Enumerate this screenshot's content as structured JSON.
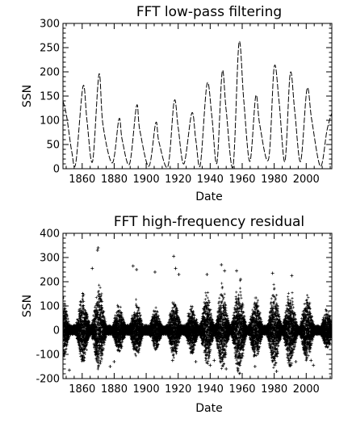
{
  "chart_data": [
    {
      "type": "line",
      "title": "FFT low-pass filtering",
      "xlabel": "Date",
      "ylabel": "SSN",
      "xlim": [
        1848,
        2016
      ],
      "ylim": [
        0,
        300
      ],
      "xticks": [
        "1860",
        "1880",
        "1900",
        "1920",
        "1940",
        "1960",
        "1980",
        "2000"
      ],
      "yticks": [
        "0",
        "50",
        "100",
        "150",
        "200",
        "250",
        "300"
      ],
      "line_style": "dashed",
      "grid": false,
      "series": [
        {
          "x": [
            1848.0,
            1850.2,
            1853.5,
            1856.0,
            1860.5,
            1863.0,
            1866.5,
            1870.5,
            1873.0,
            1878.9,
            1883.0,
            1885.0,
            1889.6,
            1894.0,
            1896.0,
            1901.7,
            1906.0,
            1908.0,
            1913.6,
            1917.5,
            1920.0,
            1923.6,
            1928.5,
            1931.0,
            1933.8,
            1938.0,
            1941.0,
            1944.2,
            1947.5,
            1950.0,
            1954.3,
            1958.0,
            1961.0,
            1964.8,
            1968.5,
            1971.0,
            1976.5,
            1980.0,
            1983.0,
            1986.7,
            1990.0,
            1992.8,
            1996.5,
            2000.5,
            2003.5,
            2008.9,
            2013.0,
            2016.0
          ],
          "y": [
            140,
            110,
            35,
            12,
            170,
            100,
            15,
            195,
            90,
            12,
            103,
            60,
            10,
            130,
            80,
            5,
            95,
            55,
            5,
            140,
            85,
            10,
            115,
            60,
            8,
            175,
            110,
            12,
            200,
            120,
            5,
            260,
            140,
            15,
            150,
            90,
            20,
            210,
            140,
            15,
            197,
            120,
            15,
            165,
            100,
            5,
            80,
            115
          ]
        }
      ]
    },
    {
      "type": "scatter",
      "title": "FFT high-frequency residual",
      "xlabel": "Date",
      "ylabel": "SSN",
      "xlim": [
        1848,
        2016
      ],
      "ylim": [
        -200,
        400
      ],
      "xticks": [
        "1860",
        "1880",
        "1900",
        "1920",
        "1940",
        "1960",
        "1980",
        "2000"
      ],
      "yticks": [
        "-200",
        "-100",
        "0",
        "100",
        "200",
        "300",
        "400"
      ],
      "marker": "plus",
      "grid": false,
      "cycle_maxima": [
        1848.0,
        1860.5,
        1870.5,
        1883.0,
        1894.0,
        1906.0,
        1917.5,
        1928.5,
        1938.0,
        1947.5,
        1958.0,
        1968.5,
        1980.0,
        1990.0,
        2000.5,
        2013.0
      ],
      "envelope_amplitude": [
        140,
        160,
        200,
        110,
        130,
        95,
        135,
        115,
        165,
        195,
        220,
        145,
        190,
        185,
        155,
        90
      ],
      "outliers": [
        {
          "x": 1870.0,
          "y": 340
        },
        {
          "x": 1869.6,
          "y": 330
        },
        {
          "x": 1866.3,
          "y": 255
        },
        {
          "x": 1891.8,
          "y": 265
        },
        {
          "x": 1894.0,
          "y": 250
        },
        {
          "x": 1905.5,
          "y": 240
        },
        {
          "x": 1917.2,
          "y": 305
        },
        {
          "x": 1918.4,
          "y": 255
        },
        {
          "x": 1920.4,
          "y": 230
        },
        {
          "x": 1938.0,
          "y": 230
        },
        {
          "x": 1947.0,
          "y": 270
        },
        {
          "x": 1949.0,
          "y": 245
        },
        {
          "x": 1956.5,
          "y": 245
        },
        {
          "x": 1959.0,
          "y": 210
        },
        {
          "x": 1979.0,
          "y": 235
        },
        {
          "x": 1991.0,
          "y": 225
        },
        {
          "x": 1852.0,
          "y": -165
        },
        {
          "x": 1871.5,
          "y": -130
        },
        {
          "x": 1877.5,
          "y": -150
        },
        {
          "x": 1880.0,
          "y": -130
        },
        {
          "x": 1916.5,
          "y": -125
        },
        {
          "x": 1931.0,
          "y": -130
        },
        {
          "x": 1940.0,
          "y": -145
        },
        {
          "x": 1942.5,
          "y": -125
        },
        {
          "x": 1950.0,
          "y": -160
        },
        {
          "x": 1958.5,
          "y": -145
        },
        {
          "x": 1968.0,
          "y": -150
        },
        {
          "x": 1981.5,
          "y": -170
        },
        {
          "x": 1989.0,
          "y": -125
        },
        {
          "x": 1993.5,
          "y": -130
        },
        {
          "x": 2003.0,
          "y": -125
        },
        {
          "x": 2004.5,
          "y": -145
        }
      ]
    }
  ]
}
